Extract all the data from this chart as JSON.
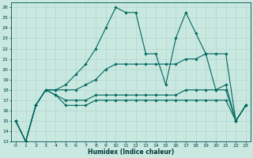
{
  "xlabel": "Humidex (Indice chaleur)",
  "bg_color": "#c8e8e0",
  "grid_color": "#b0d0cc",
  "line_color": "#006860",
  "xlim": [
    -0.5,
    23.5
  ],
  "ylim": [
    13,
    26.5
  ],
  "yticks": [
    13,
    14,
    15,
    16,
    17,
    18,
    19,
    20,
    21,
    22,
    23,
    24,
    25,
    26
  ],
  "xticks": [
    0,
    1,
    2,
    3,
    4,
    5,
    6,
    7,
    8,
    9,
    10,
    11,
    12,
    13,
    14,
    15,
    16,
    17,
    18,
    19,
    20,
    21,
    22,
    23
  ],
  "series1": [
    15.0,
    13.0,
    16.5,
    18.0,
    18.0,
    18.5,
    19.5,
    20.5,
    22.0,
    24.0,
    26.0,
    25.5,
    25.5,
    21.5,
    21.5,
    18.5,
    23.0,
    25.5,
    23.5,
    21.5,
    18.0,
    18.5,
    15.0,
    16.5
  ],
  "series2": [
    15.0,
    13.0,
    16.5,
    18.0,
    18.0,
    18.0,
    18.0,
    18.5,
    19.0,
    20.0,
    20.5,
    20.5,
    20.5,
    20.5,
    20.5,
    20.5,
    20.5,
    21.0,
    21.0,
    21.5,
    21.5,
    21.5,
    15.0,
    16.5
  ],
  "series3": [
    15.0,
    13.0,
    16.5,
    18.0,
    17.5,
    17.0,
    17.0,
    17.0,
    17.5,
    17.5,
    17.5,
    17.5,
    17.5,
    17.5,
    17.5,
    17.5,
    17.5,
    18.0,
    18.0,
    18.0,
    18.0,
    18.0,
    15.0,
    16.5
  ],
  "series4": [
    15.0,
    13.0,
    16.5,
    18.0,
    17.5,
    16.5,
    16.5,
    16.5,
    17.0,
    17.0,
    17.0,
    17.0,
    17.0,
    17.0,
    17.0,
    17.0,
    17.0,
    17.0,
    17.0,
    17.0,
    17.0,
    17.0,
    15.0,
    16.5
  ]
}
